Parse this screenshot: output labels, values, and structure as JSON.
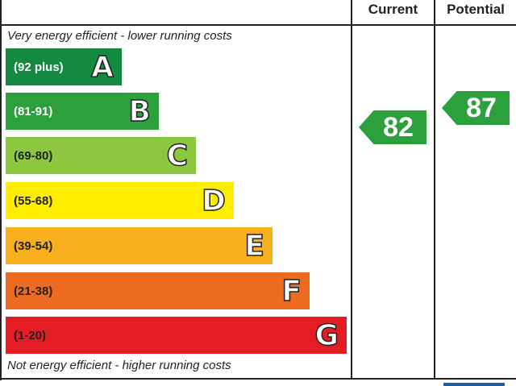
{
  "headers": {
    "current": "Current",
    "potential": "Potential"
  },
  "notes": {
    "top": "Very energy efficient - lower running costs",
    "bottom": "Not energy efficient - higher running costs"
  },
  "chart_data": {
    "type": "bar",
    "bands": [
      {
        "letter": "A",
        "range": "(92 plus)",
        "color": "#138a3f"
      },
      {
        "letter": "B",
        "range": "(81-91)",
        "color": "#2ca03c"
      },
      {
        "letter": "C",
        "range": "(69-80)",
        "color": "#8dc63f"
      },
      {
        "letter": "D",
        "range": "(55-68)",
        "color": "#ffed00"
      },
      {
        "letter": "E",
        "range": "(39-54)",
        "color": "#f7af1d"
      },
      {
        "letter": "F",
        "range": "(21-38)",
        "color": "#ed6b21"
      },
      {
        "letter": "G",
        "range": "(1-20)",
        "color": "#e31d23"
      }
    ],
    "current": {
      "value": "82",
      "band": "B",
      "color": "#2ca03c"
    },
    "potential": {
      "value": "87",
      "band": "B",
      "color": "#2ca03c"
    }
  }
}
